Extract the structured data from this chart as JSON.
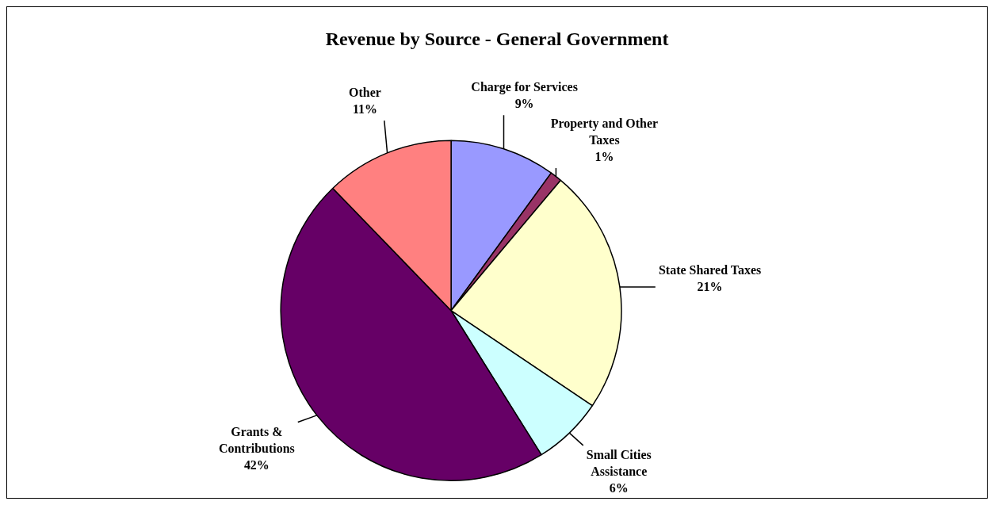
{
  "chart_data": {
    "type": "pie",
    "title": "Revenue by Source - General Government",
    "categories": [
      "Charge for Services",
      "Property and Other Taxes",
      "State Shared Taxes",
      "Small Cities Assistance",
      "Grants & Contributions",
      "Other"
    ],
    "values": [
      9,
      1,
      21,
      6,
      42,
      11
    ],
    "value_labels": [
      "9%",
      "1%",
      "21%",
      "6%",
      "42%",
      "11%"
    ],
    "colors": [
      "#9999ff",
      "#993366",
      "#ffffcc",
      "#ccffff",
      "#660066",
      "#ff8080"
    ],
    "legend": false
  }
}
